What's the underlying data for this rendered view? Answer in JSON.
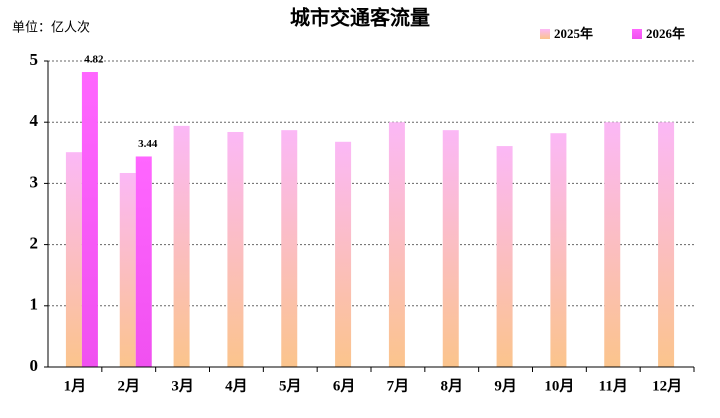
{
  "chart_data": {
    "type": "bar",
    "title": "城市交通客流量",
    "unit_label": "单位：亿人次",
    "categories": [
      "1月",
      "2月",
      "3月",
      "4月",
      "5月",
      "6月",
      "7月",
      "8月",
      "9月",
      "10月",
      "11月",
      "12月"
    ],
    "series": [
      {
        "name": "2025年",
        "colors": [
          "#fbb8f6",
          "#fbc48c"
        ],
        "data_labels": false,
        "values": [
          3.51,
          3.17,
          3.94,
          3.84,
          3.87,
          3.68,
          4.0,
          3.87,
          3.61,
          3.82,
          4.0,
          4.0
        ]
      },
      {
        "name": "2026年",
        "colors": [
          "#ff66ff",
          "#f050f0"
        ],
        "data_labels": true,
        "values": [
          4.82,
          3.44,
          null,
          null,
          null,
          null,
          null,
          null,
          null,
          null,
          null,
          null
        ]
      }
    ],
    "ylim": [
      0,
      5
    ],
    "yticks": [
      0,
      1,
      2,
      3,
      4,
      5
    ],
    "grid": true,
    "legend": "top-right"
  }
}
